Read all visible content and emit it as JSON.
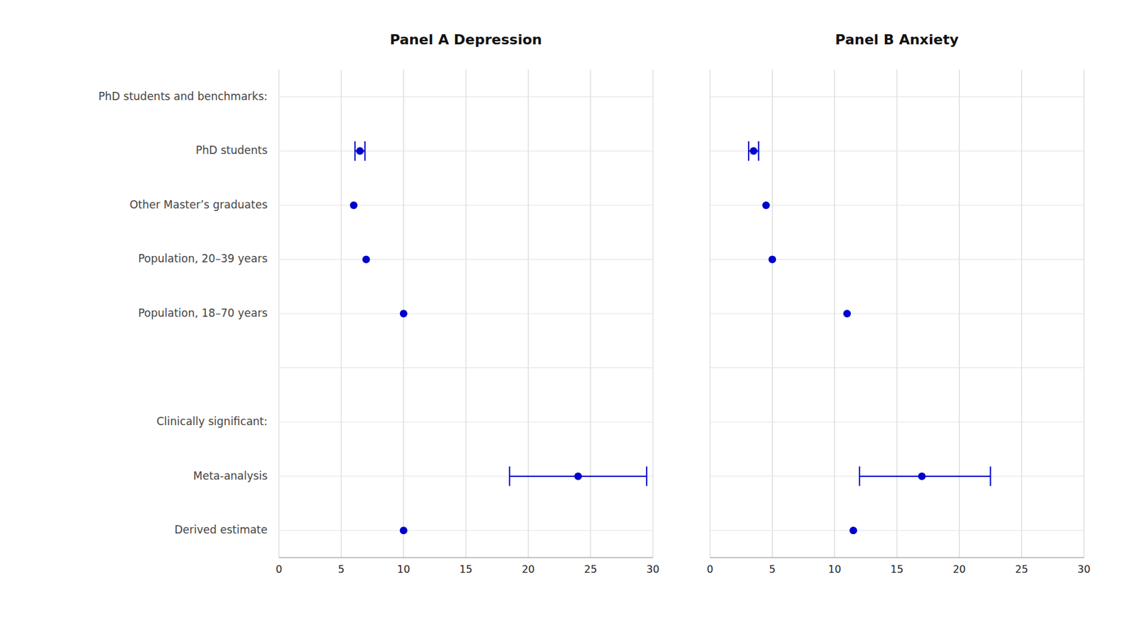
{
  "chart_data": [
    {
      "type": "dot",
      "orientation": "horizontal",
      "title": "Panel A Depression",
      "categories": [
        "PhD students and benchmarks:",
        "PhD students",
        "Other Master’s graduates",
        "Population, 20–39 years",
        "Population, 18–70 years",
        null,
        "Clinically significant:",
        "Meta-analysis",
        "Derived estimate"
      ],
      "values": [
        null,
        6.5,
        6.0,
        7.0,
        10.0,
        null,
        null,
        24.0,
        10.0
      ],
      "ci_low": [
        null,
        6.1,
        null,
        null,
        null,
        null,
        null,
        18.5,
        null
      ],
      "ci_high": [
        null,
        6.9,
        null,
        null,
        null,
        null,
        null,
        29.5,
        null
      ],
      "color": "#0000cc",
      "xlim": [
        0,
        30
      ],
      "xticks": [
        0,
        5,
        10,
        15,
        20,
        25,
        30
      ],
      "grid": true
    },
    {
      "type": "dot",
      "orientation": "horizontal",
      "title": "Panel B Anxiety",
      "categories": [
        "PhD students and benchmarks:",
        "PhD students",
        "Other Master’s graduates",
        "Population, 20–39 years",
        "Population, 18–70 years",
        null,
        "Clinically significant:",
        "Meta-analysis",
        "Derived estimate"
      ],
      "values": [
        null,
        3.5,
        4.5,
        5.0,
        11.0,
        null,
        null,
        17.0,
        11.5
      ],
      "ci_low": [
        null,
        3.1,
        null,
        null,
        null,
        null,
        null,
        12.0,
        null
      ],
      "ci_high": [
        null,
        3.9,
        null,
        null,
        null,
        null,
        null,
        22.5,
        null
      ],
      "color": "#0000cc",
      "xlim": [
        0,
        30
      ],
      "xticks": [
        0,
        5,
        10,
        15,
        20,
        25,
        30
      ],
      "grid": true,
      "tick_labels": "x"
    }
  ]
}
